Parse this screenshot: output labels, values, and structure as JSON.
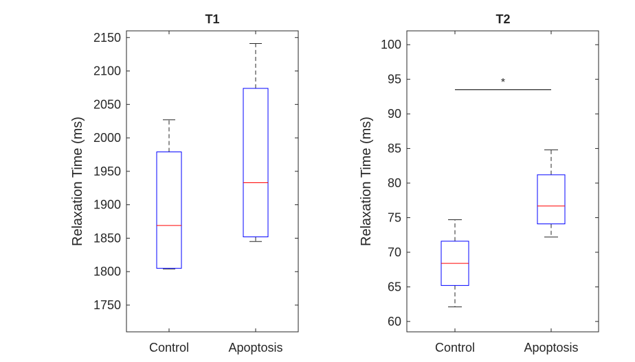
{
  "figure": {
    "colors": {
      "box": "#0000ff",
      "median": "#ff0000",
      "whisker": "#262626",
      "axis": "#262626",
      "significance": "#262626"
    }
  },
  "chart_data": [
    {
      "type": "boxplot",
      "title": "T1",
      "xlabel": "",
      "ylabel": "Relaxation Time (ms)",
      "ylim": [
        1710,
        2160
      ],
      "yticks": [
        1750,
        1800,
        1850,
        1900,
        1950,
        2000,
        2050,
        2100,
        2150
      ],
      "categories": [
        "Control",
        "Apoptosis"
      ],
      "boxes": [
        {
          "name": "Control",
          "min": 1804,
          "q1": 1805,
          "median": 1869,
          "q3": 1979,
          "max": 2027
        },
        {
          "name": "Apoptosis",
          "min": 1845,
          "q1": 1852,
          "median": 1933,
          "q3": 2074,
          "max": 2141
        }
      ],
      "significance": null
    },
    {
      "type": "boxplot",
      "title": "T2",
      "xlabel": "",
      "ylabel": "Relaxation Time (ms)",
      "ylim": [
        58.5,
        102
      ],
      "yticks": [
        60,
        65,
        70,
        75,
        80,
        85,
        90,
        95,
        100
      ],
      "categories": [
        "Control",
        "Apoptosis"
      ],
      "boxes": [
        {
          "name": "Control",
          "min": 62.1,
          "q1": 65.2,
          "median": 68.4,
          "q3": 71.6,
          "max": 74.7
        },
        {
          "name": "Apoptosis",
          "min": 72.2,
          "q1": 74.1,
          "median": 76.7,
          "q3": 81.2,
          "max": 84.8
        }
      ],
      "significance": {
        "label": "*",
        "y": 93.5
      }
    }
  ]
}
